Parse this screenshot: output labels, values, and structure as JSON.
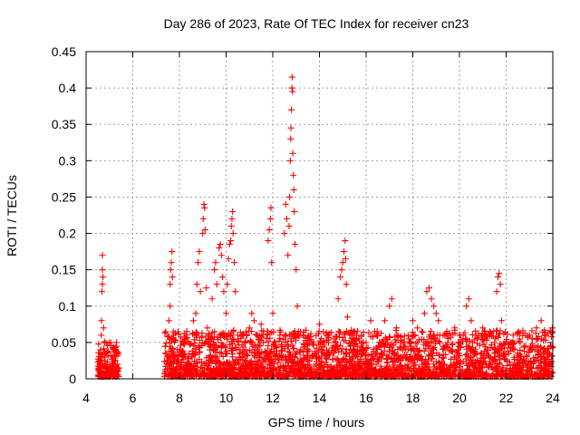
{
  "chart_data": {
    "type": "scatter",
    "title": "Day 286 of 2023, Rate Of TEC Index for receiver cn23",
    "xlabel": "GPS time / hours",
    "ylabel": "ROTI / TECUs",
    "xlim": [
      4,
      24
    ],
    "ylim": [
      0,
      0.45
    ],
    "xticks": [
      "4",
      "6",
      "8",
      "10",
      "12",
      "14",
      "16",
      "18",
      "20",
      "22",
      "24"
    ],
    "yticks": [
      "0",
      "0.05",
      "0.1",
      "0.15",
      "0.2",
      "0.25",
      "0.3",
      "0.35",
      "0.4",
      "0.45"
    ],
    "grid": true,
    "marker": "+",
    "series_color": "#ff0000",
    "series": [
      {
        "points": [
          [
            4.55,
            0.005
          ],
          [
            4.6,
            0.02
          ],
          [
            4.62,
            0.04
          ],
          [
            4.65,
            0.06
          ],
          [
            4.66,
            0.08
          ],
          [
            4.68,
            0.12
          ],
          [
            4.7,
            0.13
          ],
          [
            4.7,
            0.15
          ],
          [
            4.7,
            0.17
          ],
          [
            4.72,
            0.14
          ],
          [
            4.75,
            0.07
          ],
          [
            4.8,
            0.03
          ],
          [
            4.85,
            0.01
          ],
          [
            4.9,
            0.02
          ],
          [
            5.0,
            0.015
          ],
          [
            5.05,
            0.05
          ],
          [
            5.1,
            0.01
          ],
          [
            5.15,
            0.03
          ],
          [
            5.2,
            0.02
          ],
          [
            5.25,
            0.04
          ],
          [
            5.3,
            0.05
          ],
          [
            5.32,
            0.01
          ],
          [
            5.35,
            0.02
          ],
          [
            7.4,
            0.01
          ],
          [
            7.5,
            0.02
          ],
          [
            7.55,
            0.08
          ],
          [
            7.6,
            0.1
          ],
          [
            7.6,
            0.13
          ],
          [
            7.62,
            0.15
          ],
          [
            7.65,
            0.16
          ],
          [
            7.68,
            0.175
          ],
          [
            7.7,
            0.14
          ],
          [
            7.75,
            0.06
          ],
          [
            7.8,
            0.03
          ],
          [
            8.0,
            0.04
          ],
          [
            8.2,
            0.05
          ],
          [
            8.3,
            0.06
          ],
          [
            8.4,
            0.02
          ],
          [
            8.5,
            0.03
          ],
          [
            8.6,
            0.08
          ],
          [
            8.7,
            0.09
          ],
          [
            8.75,
            0.13
          ],
          [
            8.8,
            0.16
          ],
          [
            8.85,
            0.175
          ],
          [
            8.9,
            0.12
          ],
          [
            9.0,
            0.2
          ],
          [
            9.02,
            0.22
          ],
          [
            9.05,
            0.24
          ],
          [
            9.08,
            0.235
          ],
          [
            9.1,
            0.205
          ],
          [
            9.15,
            0.125
          ],
          [
            9.2,
            0.07
          ],
          [
            9.3,
            0.04
          ],
          [
            9.4,
            0.11
          ],
          [
            9.5,
            0.15
          ],
          [
            9.55,
            0.16
          ],
          [
            9.6,
            0.13
          ],
          [
            9.7,
            0.18
          ],
          [
            9.75,
            0.185
          ],
          [
            9.8,
            0.17
          ],
          [
            9.85,
            0.14
          ],
          [
            9.9,
            0.12
          ],
          [
            10.0,
            0.09
          ],
          [
            10.05,
            0.13
          ],
          [
            10.1,
            0.165
          ],
          [
            10.15,
            0.185
          ],
          [
            10.2,
            0.19
          ],
          [
            10.22,
            0.21
          ],
          [
            10.25,
            0.22
          ],
          [
            10.28,
            0.23
          ],
          [
            10.3,
            0.2
          ],
          [
            10.35,
            0.16
          ],
          [
            10.4,
            0.12
          ],
          [
            10.5,
            0.06
          ],
          [
            10.6,
            0.04
          ],
          [
            10.7,
            0.03
          ],
          [
            11.0,
            0.07
          ],
          [
            11.1,
            0.09
          ],
          [
            11.2,
            0.08
          ],
          [
            11.3,
            0.06
          ],
          [
            11.5,
            0.075
          ],
          [
            11.6,
            0.05
          ],
          [
            11.8,
            0.19
          ],
          [
            11.85,
            0.205
          ],
          [
            11.9,
            0.22
          ],
          [
            11.92,
            0.235
          ],
          [
            11.95,
            0.16
          ],
          [
            12.0,
            0.09
          ],
          [
            12.1,
            0.05
          ],
          [
            12.2,
            0.03
          ],
          [
            12.3,
            0.06
          ],
          [
            12.5,
            0.2
          ],
          [
            12.55,
            0.24
          ],
          [
            12.6,
            0.22
          ],
          [
            12.65,
            0.17
          ],
          [
            12.7,
            0.21
          ],
          [
            12.72,
            0.25
          ],
          [
            12.75,
            0.3
          ],
          [
            12.77,
            0.33
          ],
          [
            12.78,
            0.345
          ],
          [
            12.8,
            0.37
          ],
          [
            12.82,
            0.4
          ],
          [
            12.83,
            0.415
          ],
          [
            12.85,
            0.395
          ],
          [
            12.86,
            0.31
          ],
          [
            12.88,
            0.28
          ],
          [
            12.9,
            0.26
          ],
          [
            12.92,
            0.23
          ],
          [
            12.95,
            0.185
          ],
          [
            13.0,
            0.15
          ],
          [
            13.05,
            0.1
          ],
          [
            13.1,
            0.065
          ],
          [
            13.2,
            0.04
          ],
          [
            13.3,
            0.02
          ],
          [
            13.5,
            0.03
          ],
          [
            14.0,
            0.075
          ],
          [
            14.2,
            0.05
          ],
          [
            14.4,
            0.06
          ],
          [
            14.6,
            0.055
          ],
          [
            14.8,
            0.11
          ],
          [
            14.9,
            0.14
          ],
          [
            14.95,
            0.15
          ],
          [
            15.0,
            0.16
          ],
          [
            15.05,
            0.175
          ],
          [
            15.1,
            0.19
          ],
          [
            15.12,
            0.165
          ],
          [
            15.15,
            0.13
          ],
          [
            15.2,
            0.085
          ],
          [
            15.3,
            0.06
          ],
          [
            15.5,
            0.04
          ],
          [
            15.8,
            0.06
          ],
          [
            16.0,
            0.05
          ],
          [
            16.2,
            0.08
          ],
          [
            16.5,
            0.06
          ],
          [
            16.8,
            0.08
          ],
          [
            17.0,
            0.1
          ],
          [
            17.1,
            0.11
          ],
          [
            17.3,
            0.07
          ],
          [
            17.5,
            0.05
          ],
          [
            17.8,
            0.06
          ],
          [
            18.0,
            0.08
          ],
          [
            18.2,
            0.07
          ],
          [
            18.5,
            0.09
          ],
          [
            18.6,
            0.12
          ],
          [
            18.7,
            0.125
          ],
          [
            18.8,
            0.11
          ],
          [
            18.9,
            0.1
          ],
          [
            19.0,
            0.09
          ],
          [
            19.1,
            0.08
          ],
          [
            19.3,
            0.06
          ],
          [
            19.5,
            0.05
          ],
          [
            19.8,
            0.07
          ],
          [
            20.0,
            0.06
          ],
          [
            20.3,
            0.1
          ],
          [
            20.4,
            0.11
          ],
          [
            20.5,
            0.08
          ],
          [
            20.7,
            0.06
          ],
          [
            21.0,
            0.07
          ],
          [
            21.3,
            0.06
          ],
          [
            21.5,
            0.05
          ],
          [
            21.6,
            0.12
          ],
          [
            21.65,
            0.14
          ],
          [
            21.7,
            0.145
          ],
          [
            21.75,
            0.13
          ],
          [
            21.8,
            0.08
          ],
          [
            22.0,
            0.05
          ],
          [
            22.3,
            0.06
          ],
          [
            22.6,
            0.05
          ],
          [
            23.0,
            0.06
          ],
          [
            23.3,
            0.07
          ],
          [
            23.5,
            0.08
          ],
          [
            23.7,
            0.06
          ],
          [
            23.9,
            0.065
          ],
          [
            23.98,
            0.07
          ]
        ]
      }
    ],
    "dense_spans": [
      {
        "from": 4.5,
        "to": 5.4,
        "level": 0.03
      },
      {
        "from": 7.35,
        "to": 24.0,
        "level": 0.04
      }
    ]
  }
}
